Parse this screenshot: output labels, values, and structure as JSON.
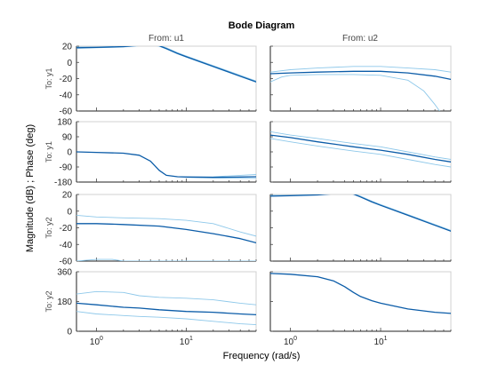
{
  "figure": {
    "title": "Bode Diagram",
    "xlabel": "Frequency  (rad/s)",
    "ylabel": "Magnitude (dB) ; Phase (deg)",
    "column_headers": [
      "From: u1",
      "From: u2"
    ],
    "row_labels": [
      "To: y1",
      "To: y1",
      "To: y2",
      "To: y2"
    ],
    "colors": {
      "nominal": "#0b5ca8",
      "bounds": "#8ec8ea"
    }
  },
  "chart_data": {
    "type": "line",
    "xscale": "log",
    "xlim": [
      0.6,
      60
    ],
    "x_ticks": [
      {
        "value": 1,
        "base": "10",
        "exp": "0"
      },
      {
        "value": 10,
        "base": "10",
        "exp": "1"
      }
    ],
    "rows": [
      {
        "label": "To: y1",
        "kind": "magnitude",
        "ylim": [
          -60,
          20
        ],
        "yticks": [
          20,
          0,
          -20,
          -40,
          -60
        ],
        "ytick_labels": [
          "20",
          "0",
          "-20",
          "-40",
          "-60"
        ]
      },
      {
        "label": "To: y1",
        "kind": "phase",
        "ylim": [
          -180,
          180
        ],
        "yticks": [
          180,
          90,
          0,
          -90,
          -180
        ],
        "ytick_labels": [
          "180",
          "90",
          "0",
          "-90",
          "-180"
        ]
      },
      {
        "label": "To: y2",
        "kind": "magnitude",
        "ylim": [
          -60,
          20
        ],
        "yticks": [
          20,
          0,
          -20,
          -40,
          -60
        ],
        "ytick_labels": [
          "20",
          "0",
          "-20",
          "-40",
          "-60"
        ]
      },
      {
        "label": "To: y2",
        "kind": "phase",
        "ylim": [
          0,
          360
        ],
        "yticks": [
          360,
          180,
          0
        ],
        "ytick_labels": [
          "360",
          "180",
          "0"
        ]
      }
    ],
    "panels": [
      {
        "row": 0,
        "col": 0,
        "series": [
          {
            "role": "upper",
            "x": [
              0.6,
              1,
              2,
              3,
              4,
              5,
              6,
              8,
              10,
              20,
              40,
              60
            ],
            "y": [
              19,
              19,
              20,
              21,
              22,
              21,
              18,
              12,
              8,
              -4,
              -16,
              -23
            ]
          },
          {
            "role": "nominal",
            "x": [
              0.6,
              1,
              2,
              3,
              4,
              5,
              6,
              8,
              10,
              20,
              40,
              60
            ],
            "y": [
              18,
              18.5,
              19.5,
              21,
              22,
              20.5,
              17,
              11,
              7,
              -5,
              -17,
              -24
            ]
          },
          {
            "role": "lower",
            "x": [
              0.6,
              1,
              2,
              3,
              4,
              5,
              6,
              8,
              10,
              20,
              40,
              60
            ],
            "y": [
              17.5,
              18,
              19,
              20.5,
              21.5,
              20,
              16.5,
              10.5,
              6.5,
              -5.5,
              -17.5,
              -24.5
            ]
          }
        ]
      },
      {
        "row": 0,
        "col": 1,
        "series": [
          {
            "role": "upper",
            "x": [
              0.6,
              1,
              2,
              5,
              10,
              20,
              40,
              60
            ],
            "y": [
              -12,
              -9,
              -7,
              -5,
              -5,
              -7,
              -9,
              -12
            ]
          },
          {
            "role": "nominal",
            "x": [
              0.6,
              1,
              2,
              5,
              10,
              20,
              40,
              60
            ],
            "y": [
              -14,
              -13,
              -12,
              -11,
              -11,
              -13,
              -17,
              -21
            ]
          },
          {
            "role": "lower",
            "x": [
              0.6,
              0.8,
              1,
              2,
              5,
              10,
              20,
              30,
              40,
              45
            ],
            "y": [
              -24,
              -18,
              -16,
              -15,
              -15,
              -16,
              -22,
              -35,
              -52,
              -60
            ]
          }
        ]
      },
      {
        "row": 1,
        "col": 0,
        "series": [
          {
            "role": "nominal",
            "x": [
              0.6,
              1,
              2,
              3,
              4,
              5,
              6,
              8,
              10,
              20,
              40,
              60
            ],
            "y": [
              0,
              -3,
              -8,
              -20,
              -55,
              -110,
              -140,
              -148,
              -150,
              -152,
              -150,
              -148
            ]
          },
          {
            "role": "upper",
            "x": [
              10,
              20,
              40,
              60
            ],
            "y": [
              -150,
              -149,
              -140,
              -135
            ]
          },
          {
            "role": "lower",
            "x": [
              10,
              20,
              40,
              60
            ],
            "y": [
              -152,
              -155,
              -158,
              -158
            ]
          }
        ]
      },
      {
        "row": 1,
        "col": 1,
        "series": [
          {
            "role": "upper",
            "x": [
              0.6,
              1,
              2,
              5,
              10,
              20,
              40,
              60
            ],
            "y": [
              120,
              100,
              80,
              50,
              30,
              0,
              -30,
              -45
            ]
          },
          {
            "role": "nominal",
            "x": [
              0.6,
              1,
              2,
              5,
              10,
              20,
              40,
              60
            ],
            "y": [
              100,
              85,
              60,
              30,
              10,
              -15,
              -45,
              -60
            ]
          },
          {
            "role": "lower",
            "x": [
              0.6,
              1,
              2,
              5,
              10,
              20,
              40,
              60
            ],
            "y": [
              80,
              60,
              35,
              5,
              -15,
              -45,
              -75,
              -90
            ]
          }
        ]
      },
      {
        "row": 2,
        "col": 0,
        "series": [
          {
            "role": "upper",
            "x": [
              0.6,
              1,
              2,
              5,
              10,
              20,
              40,
              60
            ],
            "y": [
              -5,
              -7,
              -8,
              -9,
              -11,
              -15,
              -25,
              -30
            ]
          },
          {
            "role": "nominal",
            "x": [
              0.6,
              1,
              2,
              5,
              10,
              20,
              40,
              60
            ],
            "y": [
              -15,
              -15,
              -16,
              -18,
              -22,
              -27,
              -33,
              -38
            ]
          },
          {
            "role": "lower",
            "x": [
              0.6,
              1,
              1.5,
              2,
              3,
              60
            ],
            "y": [
              -60,
              -58,
              -58,
              -60,
              -60,
              -60
            ]
          }
        ]
      },
      {
        "row": 2,
        "col": 1,
        "series": [
          {
            "role": "nominal",
            "x": [
              0.6,
              1,
              2,
              3,
              4,
              5,
              6,
              8,
              10,
              20,
              40,
              60
            ],
            "y": [
              18,
              18.5,
              19.5,
              21,
              22,
              20.5,
              17,
              11,
              7,
              -5,
              -17,
              -24
            ]
          },
          {
            "role": "upper",
            "x": [
              0.6,
              1,
              2,
              3,
              4,
              5,
              6,
              8,
              10,
              20,
              40,
              60
            ],
            "y": [
              19,
              19,
              20,
              21,
              22,
              21,
              18,
              12,
              8,
              -4,
              -16,
              -23
            ]
          }
        ]
      },
      {
        "row": 3,
        "col": 0,
        "series": [
          {
            "role": "upper",
            "x": [
              0.6,
              1,
              2,
              3,
              5,
              10,
              20,
              40,
              60
            ],
            "y": [
              225,
              240,
              235,
              215,
              205,
              200,
              190,
              170,
              160
            ]
          },
          {
            "role": "nominal",
            "x": [
              0.6,
              1,
              2,
              3,
              5,
              10,
              20,
              40,
              60
            ],
            "y": [
              170,
              160,
              145,
              140,
              130,
              120,
              115,
              105,
              100
            ]
          },
          {
            "role": "lower",
            "x": [
              0.6,
              1,
              2,
              3,
              5,
              10,
              20,
              40,
              60
            ],
            "y": [
              120,
              105,
              95,
              90,
              85,
              75,
              60,
              45,
              40
            ]
          }
        ]
      },
      {
        "row": 3,
        "col": 1,
        "series": [
          {
            "role": "nominal",
            "x": [
              0.6,
              1,
              2,
              3,
              4,
              5,
              6,
              8,
              10,
              20,
              40,
              60
            ],
            "y": [
              350,
              345,
              330,
              305,
              270,
              235,
              210,
              185,
              170,
              135,
              115,
              108
            ]
          }
        ]
      }
    ]
  }
}
